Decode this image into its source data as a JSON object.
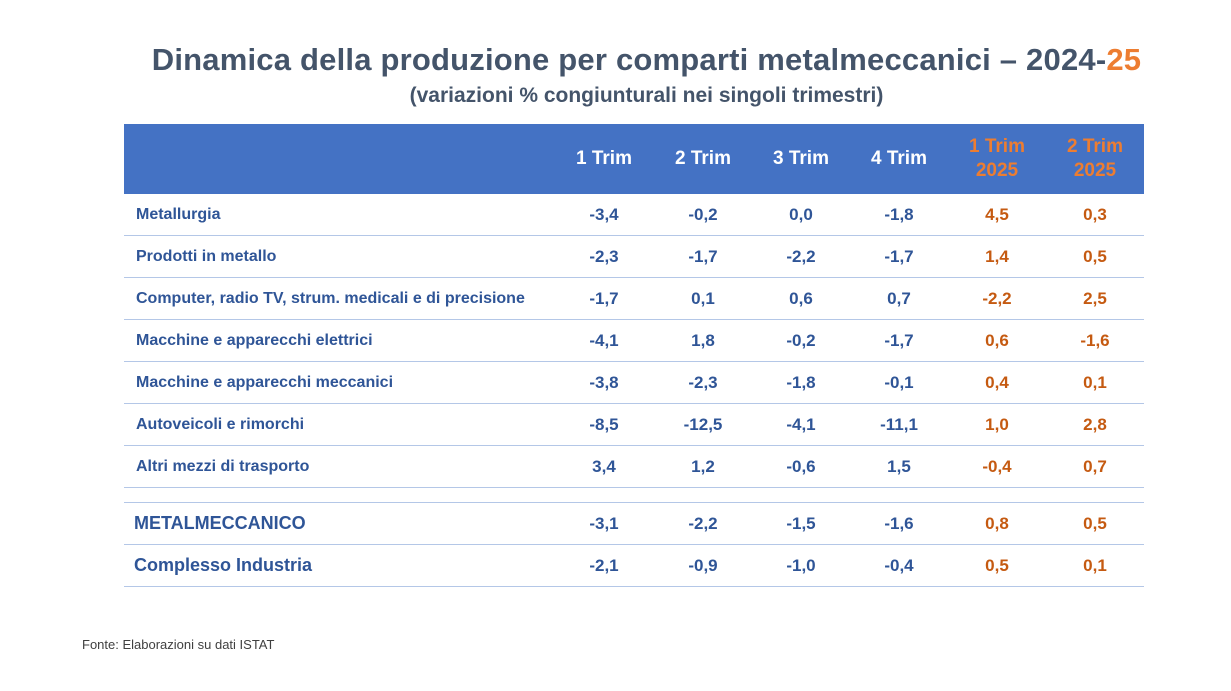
{
  "title": {
    "main": "Dinamica della produzione per comparti metalmeccanici – 2024-",
    "accent": "25",
    "subtitle": "(variazioni % congiunturali nei singoli trimestri)"
  },
  "table": {
    "columns": [
      "1 Trim",
      "2 Trim",
      "3 Trim",
      "4 Trim",
      "1 Trim 2025",
      "2 Trim 2025"
    ],
    "rows": [
      {
        "label": "Metallurgia",
        "values": [
          "-3,4",
          "-0,2",
          "0,0",
          "-1,8",
          "4,5",
          "0,3"
        ]
      },
      {
        "label": "Prodotti in metallo",
        "values": [
          "-2,3",
          "-1,7",
          "-2,2",
          "-1,7",
          "1,4",
          "0,5"
        ]
      },
      {
        "label": "Computer, radio TV, strum. medicali e di precisione",
        "values": [
          "-1,7",
          "0,1",
          "0,6",
          "0,7",
          "-2,2",
          "2,5"
        ]
      },
      {
        "label": "Macchine e apparecchi elettrici",
        "values": [
          "-4,1",
          "1,8",
          "-0,2",
          "-1,7",
          "0,6",
          "-1,6"
        ]
      },
      {
        "label": "Macchine e apparecchi meccanici",
        "values": [
          "-3,8",
          "-2,3",
          "-1,8",
          "-0,1",
          "0,4",
          "0,1"
        ]
      },
      {
        "label": "Autoveicoli e rimorchi",
        "values": [
          "-8,5",
          "-12,5",
          "-4,1",
          "-11,1",
          "1,0",
          "2,8"
        ]
      },
      {
        "label": "Altri mezzi di trasporto",
        "values": [
          "3,4",
          "1,2",
          "-0,6",
          "1,5",
          "-0,4",
          "0,7"
        ]
      }
    ],
    "totals": [
      {
        "label": "METALMECCANICO",
        "values": [
          "-3,1",
          "-2,2",
          "-1,5",
          "-1,6",
          "0,8",
          "0,5"
        ]
      },
      {
        "label": "Complesso Industria",
        "values": [
          "-2,1",
          "-0,9",
          "-1,0",
          "-0,4",
          "0,5",
          "0,1"
        ]
      }
    ]
  },
  "source": "Fonte: Elaborazioni su dati ISTAT",
  "colors": {
    "header_bg": "#4472c4",
    "title": "#44546a",
    "accent": "#ed7d31",
    "values_blue": "#2f5597",
    "values_orange": "#c55a11"
  }
}
